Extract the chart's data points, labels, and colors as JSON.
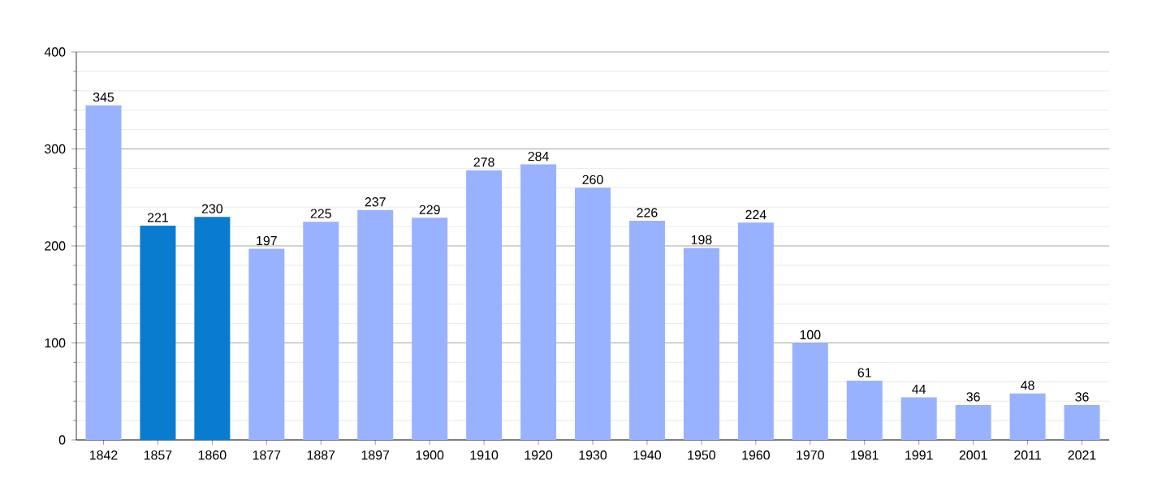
{
  "chart_data": {
    "type": "bar",
    "categories": [
      "1842",
      "1857",
      "1860",
      "1877",
      "1887",
      "1897",
      "1900",
      "1910",
      "1920",
      "1930",
      "1940",
      "1950",
      "1960",
      "1970",
      "1981",
      "1991",
      "2001",
      "2011",
      "2021"
    ],
    "values": [
      345,
      221,
      230,
      197,
      225,
      237,
      229,
      278,
      284,
      260,
      226,
      198,
      224,
      100,
      61,
      44,
      36,
      48,
      36
    ],
    "colors": [
      "#99b2ff",
      "#0a7cd0",
      "#0a7cd0",
      "#99b2ff",
      "#99b2ff",
      "#99b2ff",
      "#99b2ff",
      "#99b2ff",
      "#99b2ff",
      "#99b2ff",
      "#99b2ff",
      "#99b2ff",
      "#99b2ff",
      "#99b2ff",
      "#99b2ff",
      "#99b2ff",
      "#99b2ff",
      "#99b2ff",
      "#99b2ff"
    ],
    "ylim": [
      0,
      400
    ],
    "yticks": [
      0,
      100,
      200,
      300,
      400
    ],
    "grid": "y",
    "data_labels": true
  }
}
